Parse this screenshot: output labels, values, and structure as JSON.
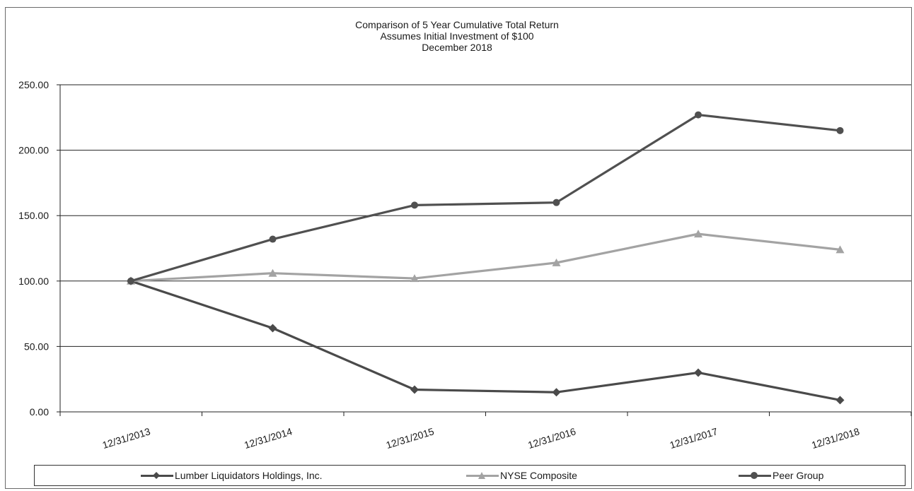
{
  "chart_data": {
    "type": "line",
    "title": "Comparison of 5 Year Cumulative Total Return",
    "subtitle_lines": [
      "Assumes Initial Investment of $100",
      "December 2018"
    ],
    "xlabel": "",
    "ylabel": "",
    "categories": [
      "12/31/2013",
      "12/31/2014",
      "12/31/2015",
      "12/31/2016",
      "12/31/2017",
      "12/31/2018"
    ],
    "y_ticks": [
      "0.00",
      "50.00",
      "100.00",
      "150.00",
      "200.00",
      "250.00"
    ],
    "ylim": [
      0,
      250
    ],
    "grid": true,
    "legend_position": "bottom",
    "series": [
      {
        "name": "Lumber Liquidators Holdings, Inc.",
        "values": [
          100,
          64,
          17,
          15,
          30,
          9
        ],
        "color": "#4a4a4a",
        "marker": "diamond"
      },
      {
        "name": "NYSE Composite",
        "values": [
          100,
          106,
          102,
          114,
          136,
          124
        ],
        "color": "#a3a3a3",
        "marker": "triangle"
      },
      {
        "name": "Peer Group",
        "values": [
          100,
          132,
          158,
          160,
          227,
          215
        ],
        "color": "#505050",
        "marker": "circle"
      }
    ]
  }
}
